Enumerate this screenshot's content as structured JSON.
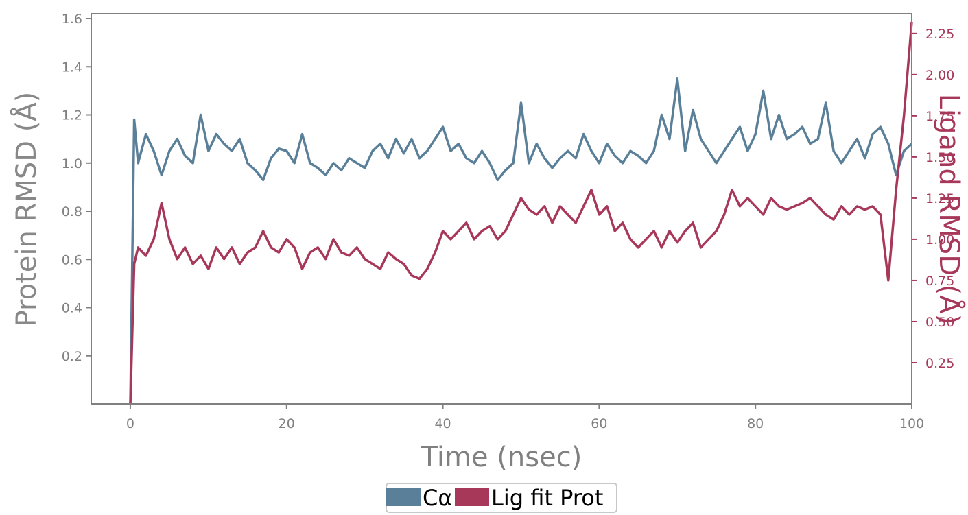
{
  "chart_data": {
    "type": "line",
    "xlabel": "Time (nsec)",
    "ylabel_left": "Protein RMSD (Å)",
    "ylabel_right": "Ligand RMSD (Å)",
    "xlim": [
      -5,
      100
    ],
    "ylim_left": [
      0.0,
      1.62
    ],
    "ylim_right": [
      0.0,
      2.37
    ],
    "xticks": [
      0,
      20,
      40,
      60,
      80,
      100
    ],
    "yticks_left": [
      0.2,
      0.4,
      0.6,
      0.8,
      1.0,
      1.2,
      1.4,
      1.6
    ],
    "yticks_right": [
      0.25,
      0.5,
      0.75,
      1.0,
      1.25,
      1.5,
      1.75,
      2.0,
      2.25
    ],
    "grid": false,
    "legend_position": "bottom-center",
    "series": [
      {
        "name": "Cα",
        "axis": "left",
        "color": "#5a7f98",
        "x": [
          0,
          0.5,
          1,
          2,
          3,
          4,
          5,
          6,
          7,
          8,
          9,
          10,
          11,
          12,
          13,
          14,
          15,
          16,
          17,
          18,
          19,
          20,
          21,
          22,
          23,
          24,
          25,
          26,
          27,
          28,
          29,
          30,
          31,
          32,
          33,
          34,
          35,
          36,
          37,
          38,
          39,
          40,
          41,
          42,
          43,
          44,
          45,
          46,
          47,
          48,
          49,
          50,
          51,
          52,
          53,
          54,
          55,
          56,
          57,
          58,
          59,
          60,
          61,
          62,
          63,
          64,
          65,
          66,
          67,
          68,
          69,
          70,
          71,
          72,
          73,
          74,
          75,
          76,
          77,
          78,
          79,
          80,
          81,
          82,
          83,
          84,
          85,
          86,
          87,
          88,
          89,
          90,
          91,
          92,
          93,
          94,
          95,
          96,
          97,
          98,
          99,
          100
        ],
        "values": [
          0.0,
          1.18,
          1.0,
          1.12,
          1.05,
          0.95,
          1.05,
          1.1,
          1.03,
          1.0,
          1.2,
          1.05,
          1.12,
          1.08,
          1.05,
          1.1,
          1.0,
          0.97,
          0.93,
          1.02,
          1.06,
          1.05,
          1.0,
          1.12,
          1.0,
          0.98,
          0.95,
          1.0,
          0.97,
          1.02,
          1.0,
          0.98,
          1.05,
          1.08,
          1.02,
          1.1,
          1.04,
          1.1,
          1.02,
          1.05,
          1.1,
          1.15,
          1.05,
          1.08,
          1.02,
          1.0,
          1.05,
          1.0,
          0.93,
          0.97,
          1.0,
          1.25,
          1.0,
          1.08,
          1.02,
          0.98,
          1.02,
          1.05,
          1.02,
          1.12,
          1.05,
          1.0,
          1.08,
          1.03,
          1.0,
          1.05,
          1.03,
          1.0,
          1.05,
          1.2,
          1.1,
          1.35,
          1.05,
          1.22,
          1.1,
          1.05,
          1.0,
          1.05,
          1.1,
          1.15,
          1.05,
          1.12,
          1.3,
          1.1,
          1.2,
          1.1,
          1.12,
          1.15,
          1.08,
          1.1,
          1.25,
          1.05,
          1.0,
          1.05,
          1.1,
          1.02,
          1.12,
          1.15,
          1.08,
          0.95,
          1.05,
          1.08
        ]
      },
      {
        "name": "Lig fit Prot",
        "axis": "right",
        "color": "#a8385a",
        "x": [
          0,
          0.5,
          1,
          2,
          3,
          4,
          5,
          6,
          7,
          8,
          9,
          10,
          11,
          12,
          13,
          14,
          15,
          16,
          17,
          18,
          19,
          20,
          21,
          22,
          23,
          24,
          25,
          26,
          27,
          28,
          29,
          30,
          31,
          32,
          33,
          34,
          35,
          36,
          37,
          38,
          39,
          40,
          41,
          42,
          43,
          44,
          45,
          46,
          47,
          48,
          49,
          50,
          51,
          52,
          53,
          54,
          55,
          56,
          57,
          58,
          59,
          60,
          61,
          62,
          63,
          64,
          65,
          66,
          67,
          68,
          69,
          70,
          71,
          72,
          73,
          74,
          75,
          76,
          77,
          78,
          79,
          80,
          81,
          82,
          83,
          84,
          85,
          86,
          87,
          88,
          89,
          90,
          91,
          92,
          93,
          94,
          95,
          96,
          97,
          98,
          99,
          100
        ],
        "values": [
          0.0,
          0.85,
          0.95,
          0.9,
          1.0,
          1.22,
          1.0,
          0.88,
          0.95,
          0.85,
          0.9,
          0.82,
          0.95,
          0.88,
          0.95,
          0.85,
          0.92,
          0.95,
          1.05,
          0.95,
          0.92,
          1.0,
          0.95,
          0.82,
          0.92,
          0.95,
          0.88,
          1.0,
          0.92,
          0.9,
          0.95,
          0.88,
          0.85,
          0.82,
          0.92,
          0.88,
          0.85,
          0.78,
          0.76,
          0.82,
          0.92,
          1.05,
          1.0,
          1.05,
          1.1,
          1.0,
          1.05,
          1.08,
          1.0,
          1.05,
          1.15,
          1.25,
          1.18,
          1.15,
          1.2,
          1.1,
          1.2,
          1.15,
          1.1,
          1.2,
          1.3,
          1.15,
          1.2,
          1.05,
          1.1,
          1.0,
          0.95,
          1.0,
          1.05,
          0.95,
          1.05,
          0.98,
          1.05,
          1.1,
          0.95,
          1.0,
          1.05,
          1.15,
          1.3,
          1.2,
          1.25,
          1.2,
          1.15,
          1.25,
          1.2,
          1.18,
          1.2,
          1.22,
          1.25,
          1.2,
          1.15,
          1.12,
          1.2,
          1.15,
          1.2,
          1.18,
          1.2,
          1.15,
          0.75,
          1.3,
          1.75,
          2.32
        ]
      }
    ]
  }
}
